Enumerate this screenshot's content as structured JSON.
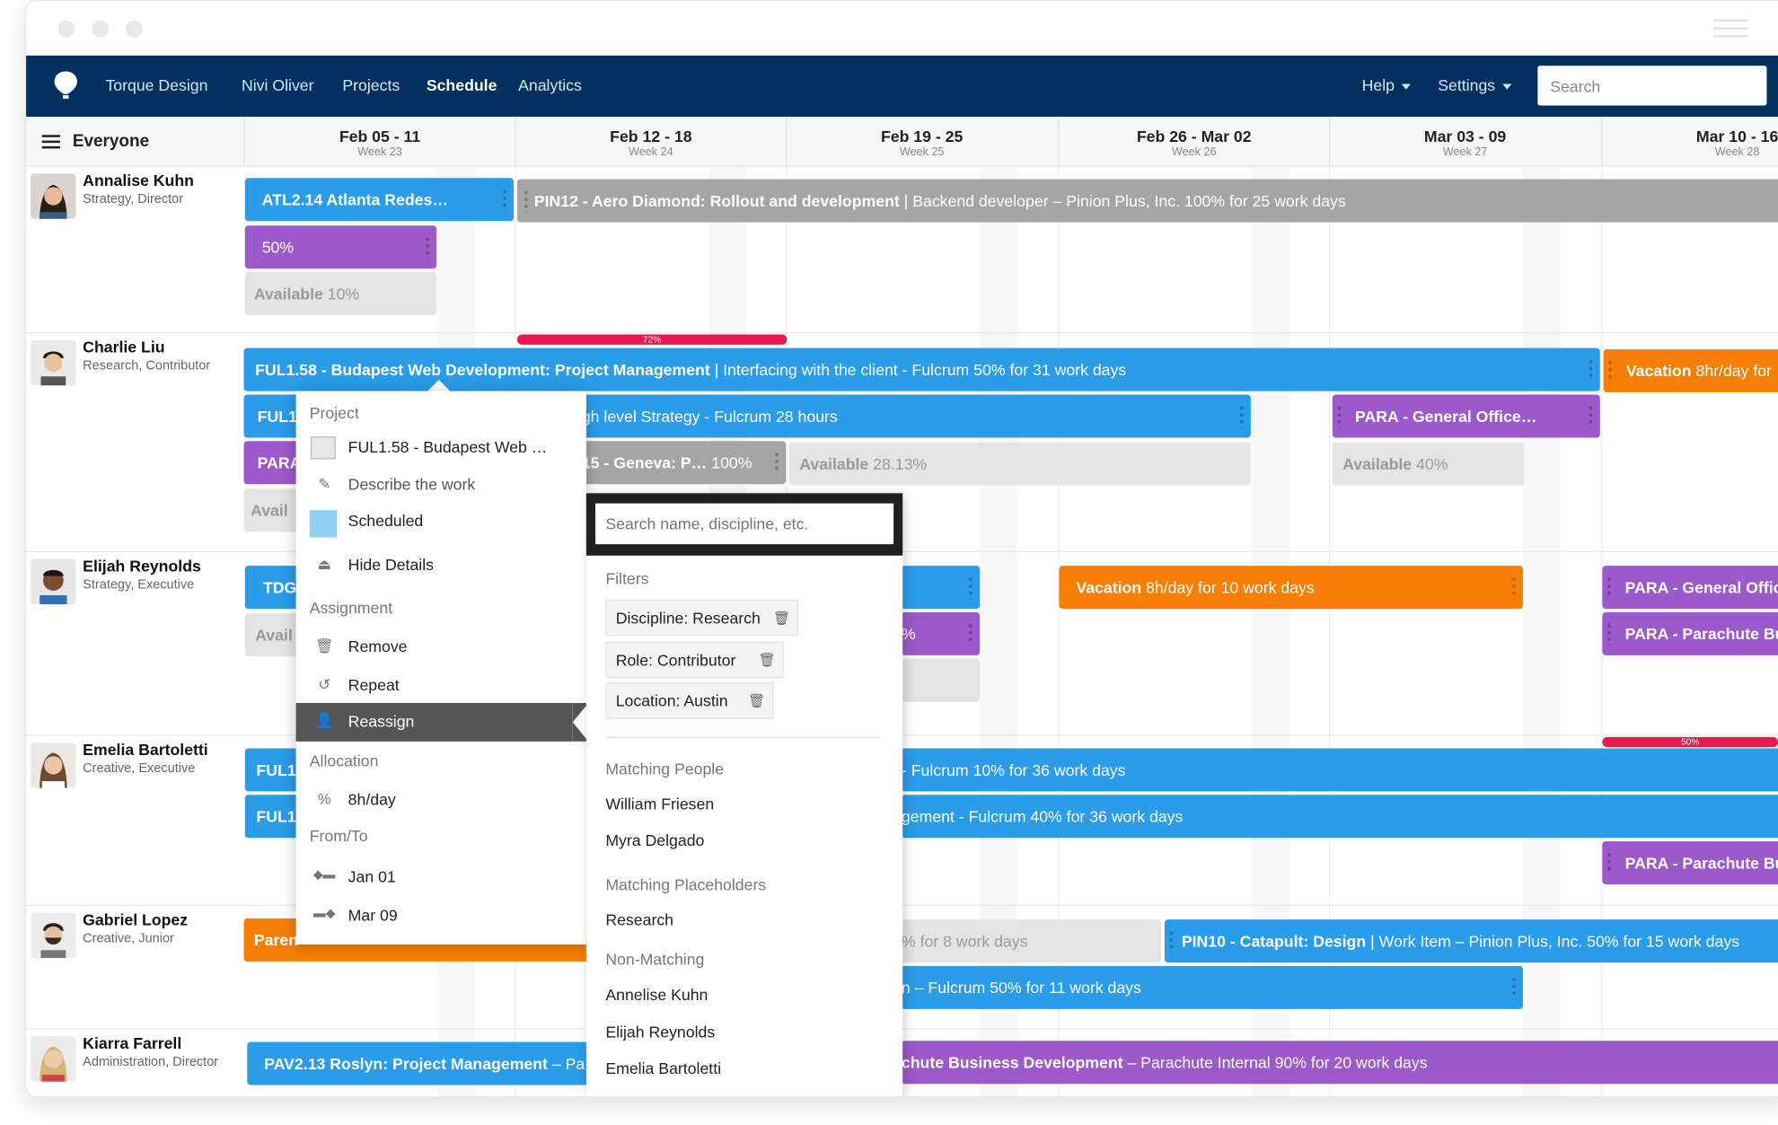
{
  "nav": {
    "items": [
      "Torque Design",
      "Nivi Oliver",
      "Projects",
      "Schedule",
      "Analytics"
    ],
    "active": "Schedule",
    "help": "Help",
    "settings": "Settings",
    "search_placeholder": "Search"
  },
  "header": {
    "everyone": "Everyone",
    "weeks": [
      {
        "range": "Feb 05 - 11",
        "week": "Week 23"
      },
      {
        "range": "Feb 12 - 18",
        "week": "Week 24"
      },
      {
        "range": "Feb 19 - 25",
        "week": "Week 25"
      },
      {
        "range": "Feb 26 - Mar 02",
        "week": "Week 26"
      },
      {
        "range": "Mar 03 - 09",
        "week": "Week 27"
      },
      {
        "range": "Mar 10 - 16",
        "week": "Week 28"
      }
    ]
  },
  "people": [
    {
      "name": "Annalise Kuhn",
      "role": "Strategy, Director"
    },
    {
      "name": "Charlie Liu",
      "role": "Research, Contributor"
    },
    {
      "name": "Elijah Reynolds",
      "role": "Strategy, Executive"
    },
    {
      "name": "Emelia Bartoletti",
      "role": "Creative, Executive"
    },
    {
      "name": "Gabriel Lopez",
      "role": "Creative, Junior"
    },
    {
      "name": "Kiarra Farrell",
      "role": "Administration, Director"
    }
  ],
  "bars": {
    "a1": "ATL2.14 Atlanta Redes…",
    "a2_b": "PIN12 - Aero Diamond: Rollout and development",
    "a2_t": " | Backend developer – Pinion Plus, Inc.  100% for 25 work days",
    "a3": "50%",
    "a4_b": "Available",
    "a4_t": " 10%",
    "r1": "72%",
    "c1_b": "FUL1.58 - Budapest Web Development: Project Management",
    "c1_t": " | Interfacing with the client - Fulcrum 50% for 31 work days",
    "c2_b": "Vacation",
    "c2_t": " 8hr/day for",
    "c3": "FUL1",
    "c4_t": "gh level Strategy - Fulcrum 28 hours",
    "c5": "PARA - General Office…",
    "c6": "PARA",
    "c7_b": "15 - Geneva: P…",
    "c7_t": " 100%",
    "c8_b": "Available",
    "c8_t": " 28.13%",
    "c9_b": "Available",
    "c9_t": " 40%",
    "c10": "Avail",
    "e1": "TDG",
    "e2_b": "Vacation",
    "e2_t": " 8h/day for 10 work days",
    "e3": "PARA - General Offic",
    "e4": "PARA - Parachute Bu",
    "e5": "Avail",
    "e6": "%",
    "r2": "50%",
    "m1": "FUL1",
    "m2_t": "- Fulcrum 10% for 36 work days",
    "m3": "FUL1",
    "m4_t": "gement - Fulcrum 40% for 36 work days",
    "m5": "PARA - Parachute Bu",
    "g1": "Paren",
    "g2_t": "% for 8 work days",
    "g3_b": "PIN10 - Catapult: Design",
    "g3_t": " | Work Item – Pinion Plus, Inc. 50% for 15 work days",
    "g4_t": "n – Fulcrum 50% for 11 work days",
    "k1_b": "PAV2.13 Roslyn: Project Management",
    "k1_t": " – Pa",
    "k2_b": "chute Business Development",
    "k2_t": " – Parachute Internal 90% for 20 work days"
  },
  "context_menu": {
    "project_header": "Project",
    "project_name": "FUL1.58 - Budapest Web …",
    "describe": "Describe the work",
    "scheduled": "Scheduled",
    "hide_details": "Hide Details",
    "assignment_header": "Assignment",
    "remove": "Remove",
    "repeat": "Repeat",
    "reassign": "Reassign",
    "allocation_header": "Allocation",
    "allocation_value": "8h/day",
    "fromto_header": "From/To",
    "from": "Jan 01",
    "to": "Mar 09"
  },
  "reassign_panel": {
    "search_placeholder": "Search name, discipline, etc.",
    "filters_header": "Filters",
    "filters": [
      "Discipline: Research",
      "Role: Contributor",
      "Location: Austin"
    ],
    "matching_people_header": "Matching People",
    "matching_people": [
      "William Friesen",
      "Myra Delgado"
    ],
    "matching_placeholders_header": "Matching Placeholders",
    "matching_placeholders": [
      "Research"
    ],
    "non_matching_header": "Non-Matching",
    "non_matching": [
      "Annelise Kuhn",
      "Elijah Reynolds",
      "Emelia Bartoletti"
    ]
  },
  "colors": {
    "nav": "#02315f",
    "blue": "#2a9ce8",
    "purple": "#9b59c9",
    "orange": "#f87f05",
    "gray": "#a5a5a5",
    "red": "#e8194f"
  }
}
